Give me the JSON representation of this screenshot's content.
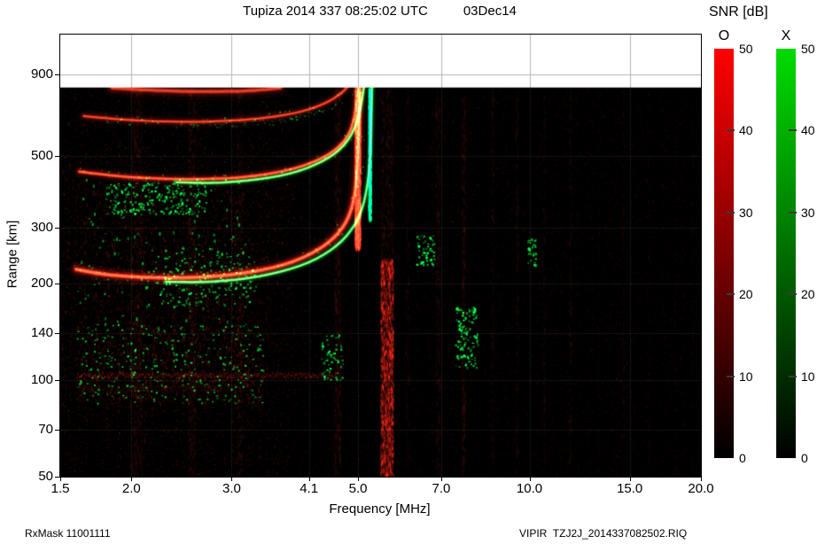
{
  "title": {
    "main": "Tupiza 2014 337 08:25:02 UTC",
    "date": "03Dec14"
  },
  "footer": {
    "left": "RxMask 11001111",
    "right": "VIPIR  TZJ2J_2014337082502.RIQ"
  },
  "colorbar": {
    "title": "SNR [dB]",
    "bars": [
      {
        "label": "O",
        "color": "#ff0000"
      },
      {
        "label": "X",
        "color": "#00dc00"
      }
    ],
    "ticks": [
      {
        "v": 0,
        "label": "0"
      },
      {
        "v": 10,
        "label": "10"
      },
      {
        "v": 20,
        "label": "20"
      },
      {
        "v": 30,
        "label": "30"
      },
      {
        "v": 40,
        "label": "40"
      },
      {
        "v": 50,
        "label": "50"
      }
    ]
  },
  "chart_data": {
    "type": "heatmap",
    "title": "Tupiza ionogram 2014 day 337 08:25:02 UTC",
    "x_axis": {
      "label": "Frequency [MHz]",
      "scale": "log",
      "min": 1.5,
      "max": 20,
      "ticks": [
        {
          "v": 1.5,
          "label": "1.5"
        },
        {
          "v": 2,
          "label": "2.0"
        },
        {
          "v": 3,
          "label": "3.0"
        },
        {
          "v": 4.1,
          "label": "4.1"
        },
        {
          "v": 5,
          "label": "5.0"
        },
        {
          "v": 7,
          "label": "7.0"
        },
        {
          "v": 10,
          "label": "10.0"
        },
        {
          "v": 15,
          "label": "15.0"
        },
        {
          "v": 20,
          "label": "20.0"
        }
      ]
    },
    "y_axis": {
      "label": "Range [km]",
      "scale": "log",
      "min": 50,
      "max": 1200,
      "ticks": [
        {
          "v": 50,
          "label": "50"
        },
        {
          "v": 70,
          "label": "70"
        },
        {
          "v": 100,
          "label": "100"
        },
        {
          "v": 140,
          "label": "140"
        },
        {
          "v": 200,
          "label": "200"
        },
        {
          "v": 300,
          "label": "300"
        },
        {
          "v": 500,
          "label": "500"
        },
        {
          "v": 900,
          "label": "900"
        }
      ]
    },
    "snr_scale": {
      "min": 0,
      "max": 50,
      "units": "dB"
    },
    "data_max_range_km": 820,
    "modes": {
      "O": "#ff0000",
      "X": "#00e000"
    },
    "traces": [
      {
        "name": "F2-1hop-O",
        "mode": "O",
        "width": 5,
        "intensity": 1.0,
        "green_speckle": true,
        "fuzz": true,
        "points": [
          [
            1.6,
            222
          ],
          [
            1.75,
            215
          ],
          [
            1.95,
            211
          ],
          [
            2.2,
            209
          ],
          [
            2.5,
            209
          ],
          [
            2.8,
            211
          ],
          [
            3.1,
            215
          ],
          [
            3.4,
            221
          ],
          [
            3.7,
            229
          ],
          [
            4.0,
            241
          ],
          [
            4.25,
            255
          ],
          [
            4.45,
            270
          ],
          [
            4.62,
            288
          ],
          [
            4.76,
            310
          ],
          [
            4.86,
            338
          ],
          [
            4.93,
            375
          ],
          [
            4.97,
            430
          ],
          [
            5.0,
            520
          ],
          [
            5.02,
            650
          ],
          [
            5.03,
            820
          ]
        ]
      },
      {
        "name": "F2-1hop-X",
        "mode": "X",
        "width": 3,
        "intensity": 0.95,
        "points": [
          [
            2.3,
            203
          ],
          [
            2.6,
            202
          ],
          [
            2.9,
            204
          ],
          [
            3.2,
            208
          ],
          [
            3.5,
            214
          ],
          [
            3.8,
            222
          ],
          [
            4.1,
            233
          ],
          [
            4.35,
            246
          ],
          [
            4.58,
            262
          ],
          [
            4.78,
            282
          ],
          [
            4.95,
            308
          ],
          [
            5.08,
            340
          ],
          [
            5.17,
            385
          ],
          [
            5.23,
            450
          ],
          [
            5.27,
            560
          ],
          [
            5.29,
            820
          ]
        ]
      },
      {
        "name": "F2-2hop-O",
        "mode": "O",
        "width": 4,
        "intensity": 0.78,
        "green_speckle": true,
        "points": [
          [
            1.62,
            448
          ],
          [
            1.8,
            438
          ],
          [
            2.0,
            430
          ],
          [
            2.3,
            425
          ],
          [
            2.6,
            424
          ],
          [
            2.95,
            427
          ],
          [
            3.25,
            433
          ],
          [
            3.55,
            443
          ],
          [
            3.85,
            457
          ],
          [
            4.1,
            474
          ],
          [
            4.35,
            496
          ],
          [
            4.55,
            522
          ],
          [
            4.72,
            554
          ],
          [
            4.85,
            600
          ],
          [
            4.93,
            665
          ],
          [
            4.98,
            760
          ],
          [
            5.0,
            820
          ]
        ]
      },
      {
        "name": "F2-2hop-X",
        "mode": "X",
        "width": 3,
        "intensity": 0.9,
        "points": [
          [
            2.4,
            415
          ],
          [
            2.75,
            412
          ],
          [
            3.05,
            416
          ],
          [
            3.35,
            424
          ],
          [
            3.65,
            434
          ],
          [
            3.95,
            450
          ],
          [
            4.2,
            470
          ],
          [
            4.45,
            495
          ],
          [
            4.65,
            525
          ],
          [
            4.82,
            565
          ],
          [
            4.95,
            620
          ],
          [
            5.05,
            700
          ],
          [
            5.11,
            800
          ],
          [
            5.12,
            820
          ]
        ]
      },
      {
        "name": "F2-3hop-O",
        "mode": "O",
        "width": 4,
        "intensity": 0.55,
        "green_speckle": true,
        "points": [
          [
            1.65,
            668
          ],
          [
            1.9,
            652
          ],
          [
            2.2,
            643
          ],
          [
            2.55,
            640
          ],
          [
            2.9,
            644
          ],
          [
            3.25,
            652
          ],
          [
            3.55,
            664
          ],
          [
            3.85,
            680
          ],
          [
            4.1,
            700
          ],
          [
            4.35,
            728
          ],
          [
            4.55,
            760
          ],
          [
            4.72,
            800
          ],
          [
            4.78,
            820
          ]
        ]
      },
      {
        "name": "F2-3hop-X",
        "mode": "X",
        "width": 2,
        "intensity": 0.6,
        "style": "speckle",
        "points": [
          [
            2.4,
            630
          ],
          [
            2.8,
            628
          ],
          [
            3.2,
            634
          ],
          [
            3.55,
            644
          ],
          [
            3.9,
            660
          ],
          [
            4.2,
            682
          ],
          [
            4.5,
            714
          ],
          [
            4.75,
            760
          ],
          [
            4.9,
            810
          ],
          [
            4.93,
            820
          ]
        ]
      },
      {
        "name": "F2-4hop-O",
        "mode": "O",
        "width": 6,
        "intensity": 0.5,
        "points": [
          [
            1.85,
            818
          ],
          [
            2.1,
            806
          ],
          [
            2.45,
            798
          ],
          [
            2.8,
            796
          ],
          [
            3.15,
            800
          ],
          [
            3.45,
            808
          ],
          [
            3.65,
            818
          ]
        ]
      }
    ],
    "asymptotes": [
      {
        "mode": "O",
        "f": 4.99,
        "w": 0.12,
        "r": [
          260,
          820
        ],
        "a": 0.4
      },
      {
        "mode": "X",
        "f": 5.24,
        "w": 0.06,
        "r": [
          320,
          820
        ],
        "a": 0.5
      }
    ],
    "rfi_stripes": [
      {
        "f": 2.05,
        "w": 0.08,
        "r": [
          50,
          820
        ],
        "a": 0.08,
        "c": "O"
      },
      {
        "f": 2.55,
        "w": 0.08,
        "r": [
          50,
          820
        ],
        "a": 0.08,
        "c": "O"
      },
      {
        "f": 3.1,
        "w": 0.08,
        "r": [
          50,
          820
        ],
        "a": 0.07,
        "c": "O"
      },
      {
        "f": 4.6,
        "w": 0.12,
        "r": [
          50,
          820
        ],
        "a": 0.1,
        "c": "O"
      },
      {
        "f": 5.62,
        "w": 0.3,
        "r": [
          50,
          240
        ],
        "a": 0.28,
        "c": "O"
      },
      {
        "f": 5.62,
        "w": 0.3,
        "r": [
          240,
          820
        ],
        "a": 0.08,
        "c": "O"
      },
      {
        "f": 6.1,
        "w": 0.1,
        "r": [
          50,
          820
        ],
        "a": 0.06,
        "c": "O"
      },
      {
        "f": 6.9,
        "w": 0.12,
        "r": [
          50,
          820
        ],
        "a": 0.08,
        "c": "O"
      },
      {
        "f": 7.65,
        "w": 0.12,
        "r": [
          50,
          820
        ],
        "a": 0.1,
        "c": "O"
      },
      {
        "f": 8.6,
        "w": 0.1,
        "r": [
          50,
          820
        ],
        "a": 0.06,
        "c": "O"
      },
      {
        "f": 9.5,
        "w": 0.12,
        "r": [
          50,
          820
        ],
        "a": 0.07,
        "c": "O"
      },
      {
        "f": 10.6,
        "w": 0.1,
        "r": [
          50,
          820
        ],
        "a": 0.06,
        "c": "O"
      },
      {
        "f": 11.8,
        "w": 0.12,
        "r": [
          50,
          820
        ],
        "a": 0.07,
        "c": "O"
      },
      {
        "f": 13.2,
        "w": 0.1,
        "r": [
          50,
          820
        ],
        "a": 0.05,
        "c": "O"
      },
      {
        "f": 14.6,
        "w": 0.12,
        "r": [
          50,
          820
        ],
        "a": 0.06,
        "c": "O"
      },
      {
        "f": 16.2,
        "w": 0.1,
        "r": [
          50,
          820
        ],
        "a": 0.06,
        "c": "O"
      },
      {
        "f": 18.0,
        "w": 0.12,
        "r": [
          50,
          820
        ],
        "a": 0.05,
        "c": "O"
      },
      {
        "f": 19.3,
        "w": 0.1,
        "r": [
          50,
          820
        ],
        "a": 0.05,
        "c": "O"
      }
    ],
    "e_region": [
      {
        "km": 104,
        "f": [
          1.6,
          4.6
        ],
        "a": 0.3
      },
      {
        "km": 95,
        "f": [
          1.6,
          3.0
        ],
        "a": 0.12
      }
    ],
    "speckle_patches": [
      {
        "f": [
          1.6,
          3.4
        ],
        "r": [
          85,
          150
        ],
        "count": 1100,
        "c": "mix"
      },
      {
        "f": [
          1.6,
          3.2
        ],
        "r": [
          150,
          430
        ],
        "count": 800,
        "c": "mix2"
      },
      {
        "f": [
          1.8,
          2.7
        ],
        "r": [
          330,
          415
        ],
        "count": 240,
        "c": "X"
      },
      {
        "f": [
          2.2,
          3.3
        ],
        "r": [
          170,
          260
        ],
        "count": 200,
        "c": "X"
      },
      {
        "f": [
          7.4,
          8.1
        ],
        "r": [
          110,
          170
        ],
        "count": 140,
        "c": "X"
      },
      {
        "f": [
          6.3,
          6.8
        ],
        "r": [
          230,
          285
        ],
        "count": 60,
        "c": "X"
      },
      {
        "f": [
          4.3,
          4.7
        ],
        "r": [
          100,
          140
        ],
        "count": 60,
        "c": "X"
      },
      {
        "f": [
          9.9,
          10.3
        ],
        "r": [
          230,
          280
        ],
        "count": 30,
        "c": "X"
      }
    ],
    "noise": {
      "seed": 11,
      "count": 30000,
      "base_alpha": 0.09,
      "left_boost": 2.0
    }
  }
}
